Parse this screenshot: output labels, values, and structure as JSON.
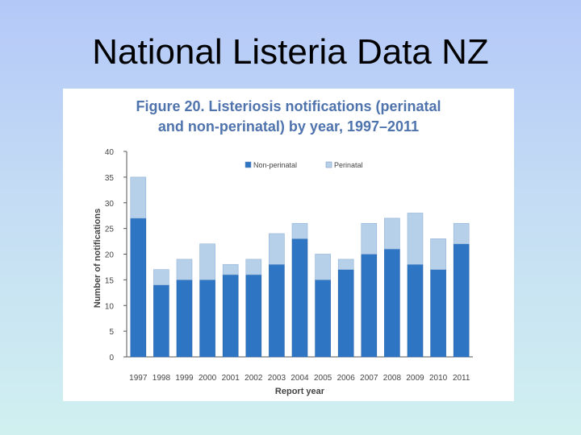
{
  "slide": {
    "title": "National Listeria Data NZ"
  },
  "chart_data": {
    "type": "bar",
    "stacked": true,
    "title": "Figure 20. Listeriosis notifications (perinatal",
    "title_line2": "and non-perinatal) by year, 1997–2011",
    "xlabel": "Report year",
    "ylabel": "Number of notifications",
    "ylim": [
      0,
      40
    ],
    "yticks": [
      0,
      5,
      10,
      15,
      20,
      25,
      30,
      35,
      40
    ],
    "categories": [
      "1997",
      "1998",
      "1999",
      "2000",
      "2001",
      "2002",
      "2003",
      "2004",
      "2005",
      "2006",
      "2007",
      "2008",
      "2009",
      "2010",
      "2011"
    ],
    "series": [
      {
        "name": "Non-perinatal",
        "color": "#2e75c4",
        "values": [
          27,
          14,
          15,
          15,
          16,
          16,
          18,
          23,
          15,
          17,
          20,
          21,
          18,
          17,
          22
        ]
      },
      {
        "name": "Perinatal",
        "color": "#b7d0ea",
        "values": [
          8,
          3,
          4,
          7,
          2,
          3,
          6,
          3,
          5,
          2,
          6,
          6,
          10,
          6,
          4
        ]
      }
    ],
    "legend_position": "top",
    "grid": false
  }
}
